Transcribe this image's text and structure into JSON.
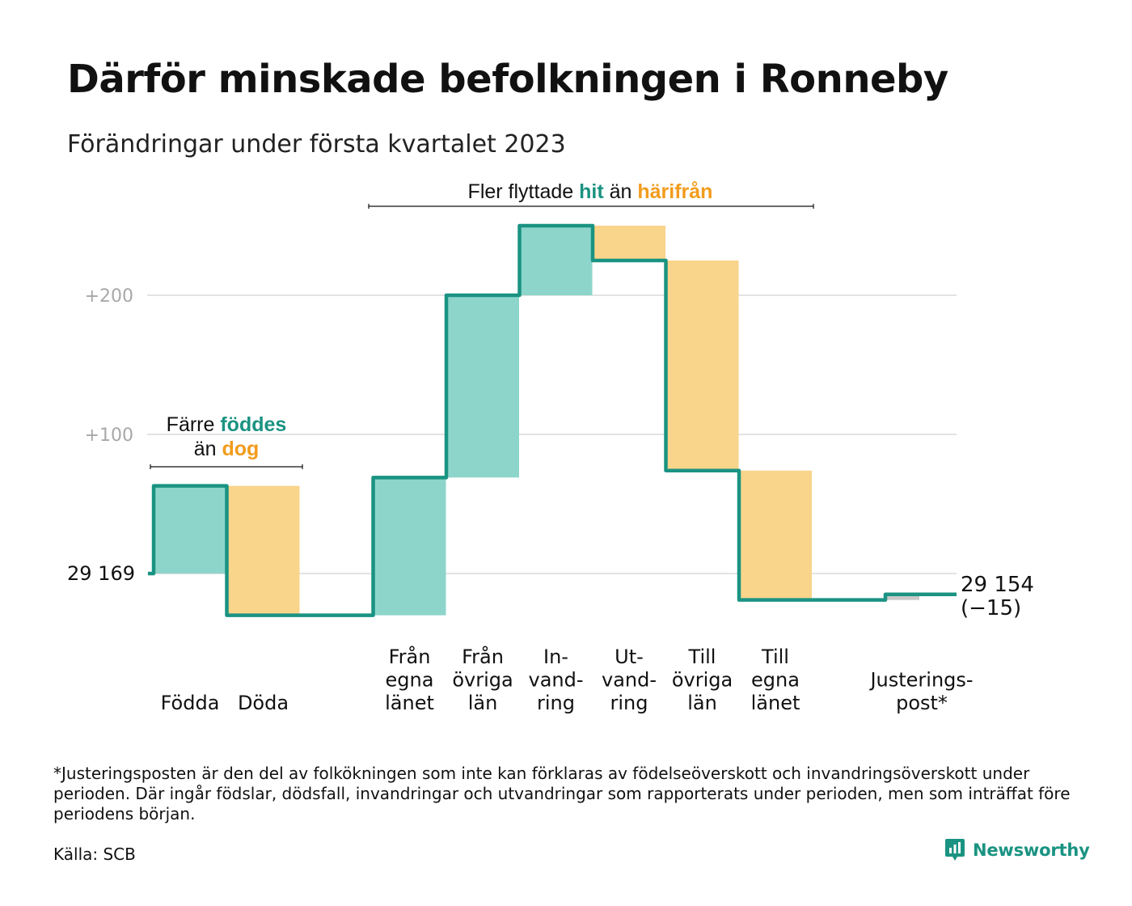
{
  "title": "Därför minskade befolkningen i Ronneby",
  "subtitle": "Förändringar under första kvartalet 2023",
  "colors": {
    "increase": "#8dd5cb",
    "decrease": "#f9d48b",
    "adjustment": "#c8c8c8",
    "step_line": "#1a9382",
    "teal_text": "#1a9382",
    "orange_text": "#f29c1c",
    "gridline": "#e3e3e3",
    "tick_text": "#a8a8a8"
  },
  "annotations": {
    "births": {
      "line1_prefix": "Färre ",
      "line1_highlight": "föddes",
      "line2_prefix": "än ",
      "line2_highlight": "dog"
    },
    "migration": {
      "prefix": "Fler flyttade ",
      "highlight1": "hit",
      "middle": " än ",
      "highlight2": "härifrån"
    }
  },
  "chart_data": {
    "type": "waterfall",
    "start_value": 29169,
    "start_label": "29 169",
    "end_value": 29154,
    "end_label": "29 154",
    "change_label": "(−15)",
    "y_ticks": [
      {
        "offset": 100,
        "label": "+100"
      },
      {
        "offset": 200,
        "label": "+200"
      }
    ],
    "grid": true,
    "steps": [
      {
        "label": [
          "Födda"
        ],
        "value": 63,
        "kind": "increase"
      },
      {
        "label": [
          "Döda"
        ],
        "value": -93,
        "kind": "decrease"
      },
      {
        "label": [
          "Från",
          "egna",
          "länet"
        ],
        "value": 99,
        "kind": "increase"
      },
      {
        "label": [
          "Från",
          "övriga",
          "län"
        ],
        "value": 131,
        "kind": "increase"
      },
      {
        "label": [
          "In-",
          "vand-",
          "ring"
        ],
        "value": 50,
        "kind": "increase"
      },
      {
        "label": [
          "Ut-",
          "vand-",
          "ring"
        ],
        "value": -25,
        "kind": "decrease"
      },
      {
        "label": [
          "Till",
          "övriga",
          "län"
        ],
        "value": -151,
        "kind": "decrease"
      },
      {
        "label": [
          "Till",
          "egna",
          "länet"
        ],
        "value": -93,
        "kind": "decrease"
      },
      {
        "label": [
          "Justerings-",
          "post*"
        ],
        "value": 4,
        "kind": "adjustment"
      }
    ]
  },
  "footnote": "*Justeringsposten är den del av folkökningen som inte kan förklaras av födelseöverskott och invandringsöverskott under perioden. Där ingår födslar, dödsfall, invandringar och utvandringar som rapporterats under perioden, men som inträffat före periodens början.",
  "source": "Källa: SCB",
  "brand": {
    "name": "Newsworthy",
    "icon": "newsworthy-logo-icon"
  }
}
